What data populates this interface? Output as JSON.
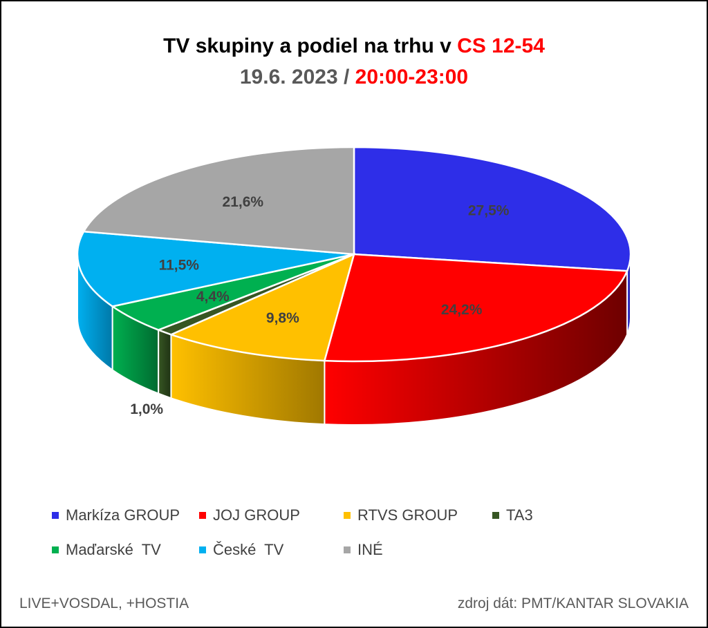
{
  "title": {
    "line1_black": "TV skupiny a podiel na trhu v ",
    "line1_red": "CS 12-54",
    "line2_gray": "19.6. 2023 / ",
    "line2_red": "20:00-23:00"
  },
  "chart_data": {
    "type": "pie",
    "style": "3d",
    "series": [
      {
        "name": "Markíza GROUP",
        "value": 27.5,
        "label": "27,5%",
        "color": "#2e2ee8",
        "side_color": "#1a1a8a"
      },
      {
        "name": "JOJ GROUP",
        "value": 24.2,
        "label": "24,2%",
        "color": "#ff0000",
        "side_color": "#6e0000"
      },
      {
        "name": "RTVS GROUP",
        "value": 9.8,
        "label": "9,8%",
        "color": "#ffc000",
        "side_color": "#a07800"
      },
      {
        "name": "TA3",
        "value": 1.0,
        "label": "1,0%",
        "color": "#375623",
        "side_color": "#1f3314"
      },
      {
        "name": "Maďarské  TV",
        "value": 4.4,
        "label": "4,4%",
        "color": "#00b050",
        "side_color": "#006b30"
      },
      {
        "name": "České  TV",
        "value": 11.5,
        "label": "11,5%",
        "color": "#00b0f0",
        "side_color": "#0078a8"
      },
      {
        "name": "INÉ",
        "value": 21.6,
        "label": "21,6%",
        "color": "#a6a6a6",
        "side_color": "#6e6e6e"
      }
    ],
    "legend_position": "bottom"
  },
  "footer": {
    "left": "LIVE+VOSDAL, +HOSTIA",
    "right": "zdroj dát: PMT/KANTAR SLOVAKIA"
  }
}
